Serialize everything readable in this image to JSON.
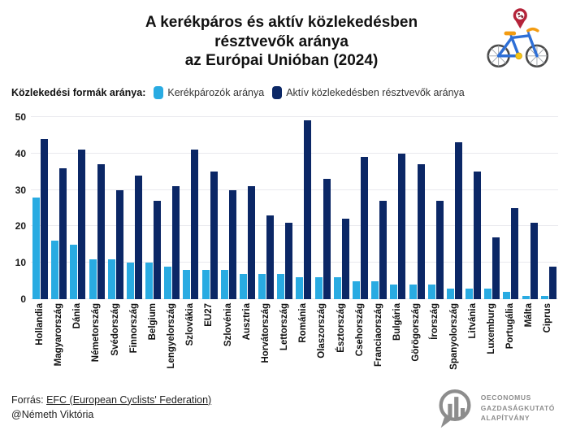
{
  "title": "A kerékpáros és aktív közlekedésben\nrésztvevők aránya\naz Európai Unióban (2024)",
  "legend": {
    "label": "Közlekedési formák aránya:",
    "items": [
      {
        "label": "Kerékpározók aránya",
        "color": "#29abe2"
      },
      {
        "label": "Aktív közlekedésben résztvevők aránya",
        "color": "#0b2766"
      }
    ]
  },
  "chart_data": {
    "type": "bar",
    "title": "A kerékpáros és aktív közlekedésben résztvevők aránya az Európai Unióban (2024)",
    "categories": [
      "Hollandia",
      "Magyarország",
      "Dánia",
      "Németország",
      "Svédország",
      "Finnország",
      "Belgium",
      "Lengyelország",
      "Szlovákia",
      "EU27",
      "Szlovénia",
      "Ausztria",
      "Horvátország",
      "Lettország",
      "Románia",
      "Olaszország",
      "Észtország",
      "Csehország",
      "Franciaország",
      "Bulgária",
      "Görögország",
      "Írország",
      "Spanyolország",
      "Litvánia",
      "Luxemburg",
      "Portugália",
      "Málta",
      "Ciprus"
    ],
    "series": [
      {
        "name": "Kerékpározók aránya",
        "color": "#29abe2",
        "values": [
          28,
          16,
          15,
          11,
          11,
          10,
          10,
          9,
          8,
          8,
          8,
          7,
          7,
          7,
          6,
          6,
          6,
          5,
          5,
          4,
          4,
          4,
          3,
          3,
          3,
          2,
          1,
          1
        ]
      },
      {
        "name": "Aktív közlekedésben résztvevők aránya",
        "color": "#0b2766",
        "values": [
          44,
          36,
          41,
          37,
          30,
          34,
          27,
          31,
          41,
          35,
          30,
          31,
          23,
          21,
          49,
          33,
          22,
          39,
          27,
          40,
          37,
          27,
          43,
          35,
          17,
          25,
          21,
          9
        ]
      }
    ],
    "xlabel": "",
    "ylabel": "",
    "ylim": [
      0,
      50
    ],
    "yticks": [
      0,
      10,
      20,
      30,
      40,
      50
    ],
    "grid": true,
    "legend_position": "top"
  },
  "footer": {
    "source_prefix": "Forrás: ",
    "source_link": "EFC (European Cyclists' Federation)",
    "handle": "@Németh Viktória"
  },
  "logo": {
    "lines": [
      "OECONOMUS",
      "GAZDASÁGKUTATÓ",
      "ALAPÍTVÁNY"
    ]
  },
  "colors": {
    "cyclists": "#29abe2",
    "active": "#0b2766",
    "grid": "#e9e9ee"
  }
}
